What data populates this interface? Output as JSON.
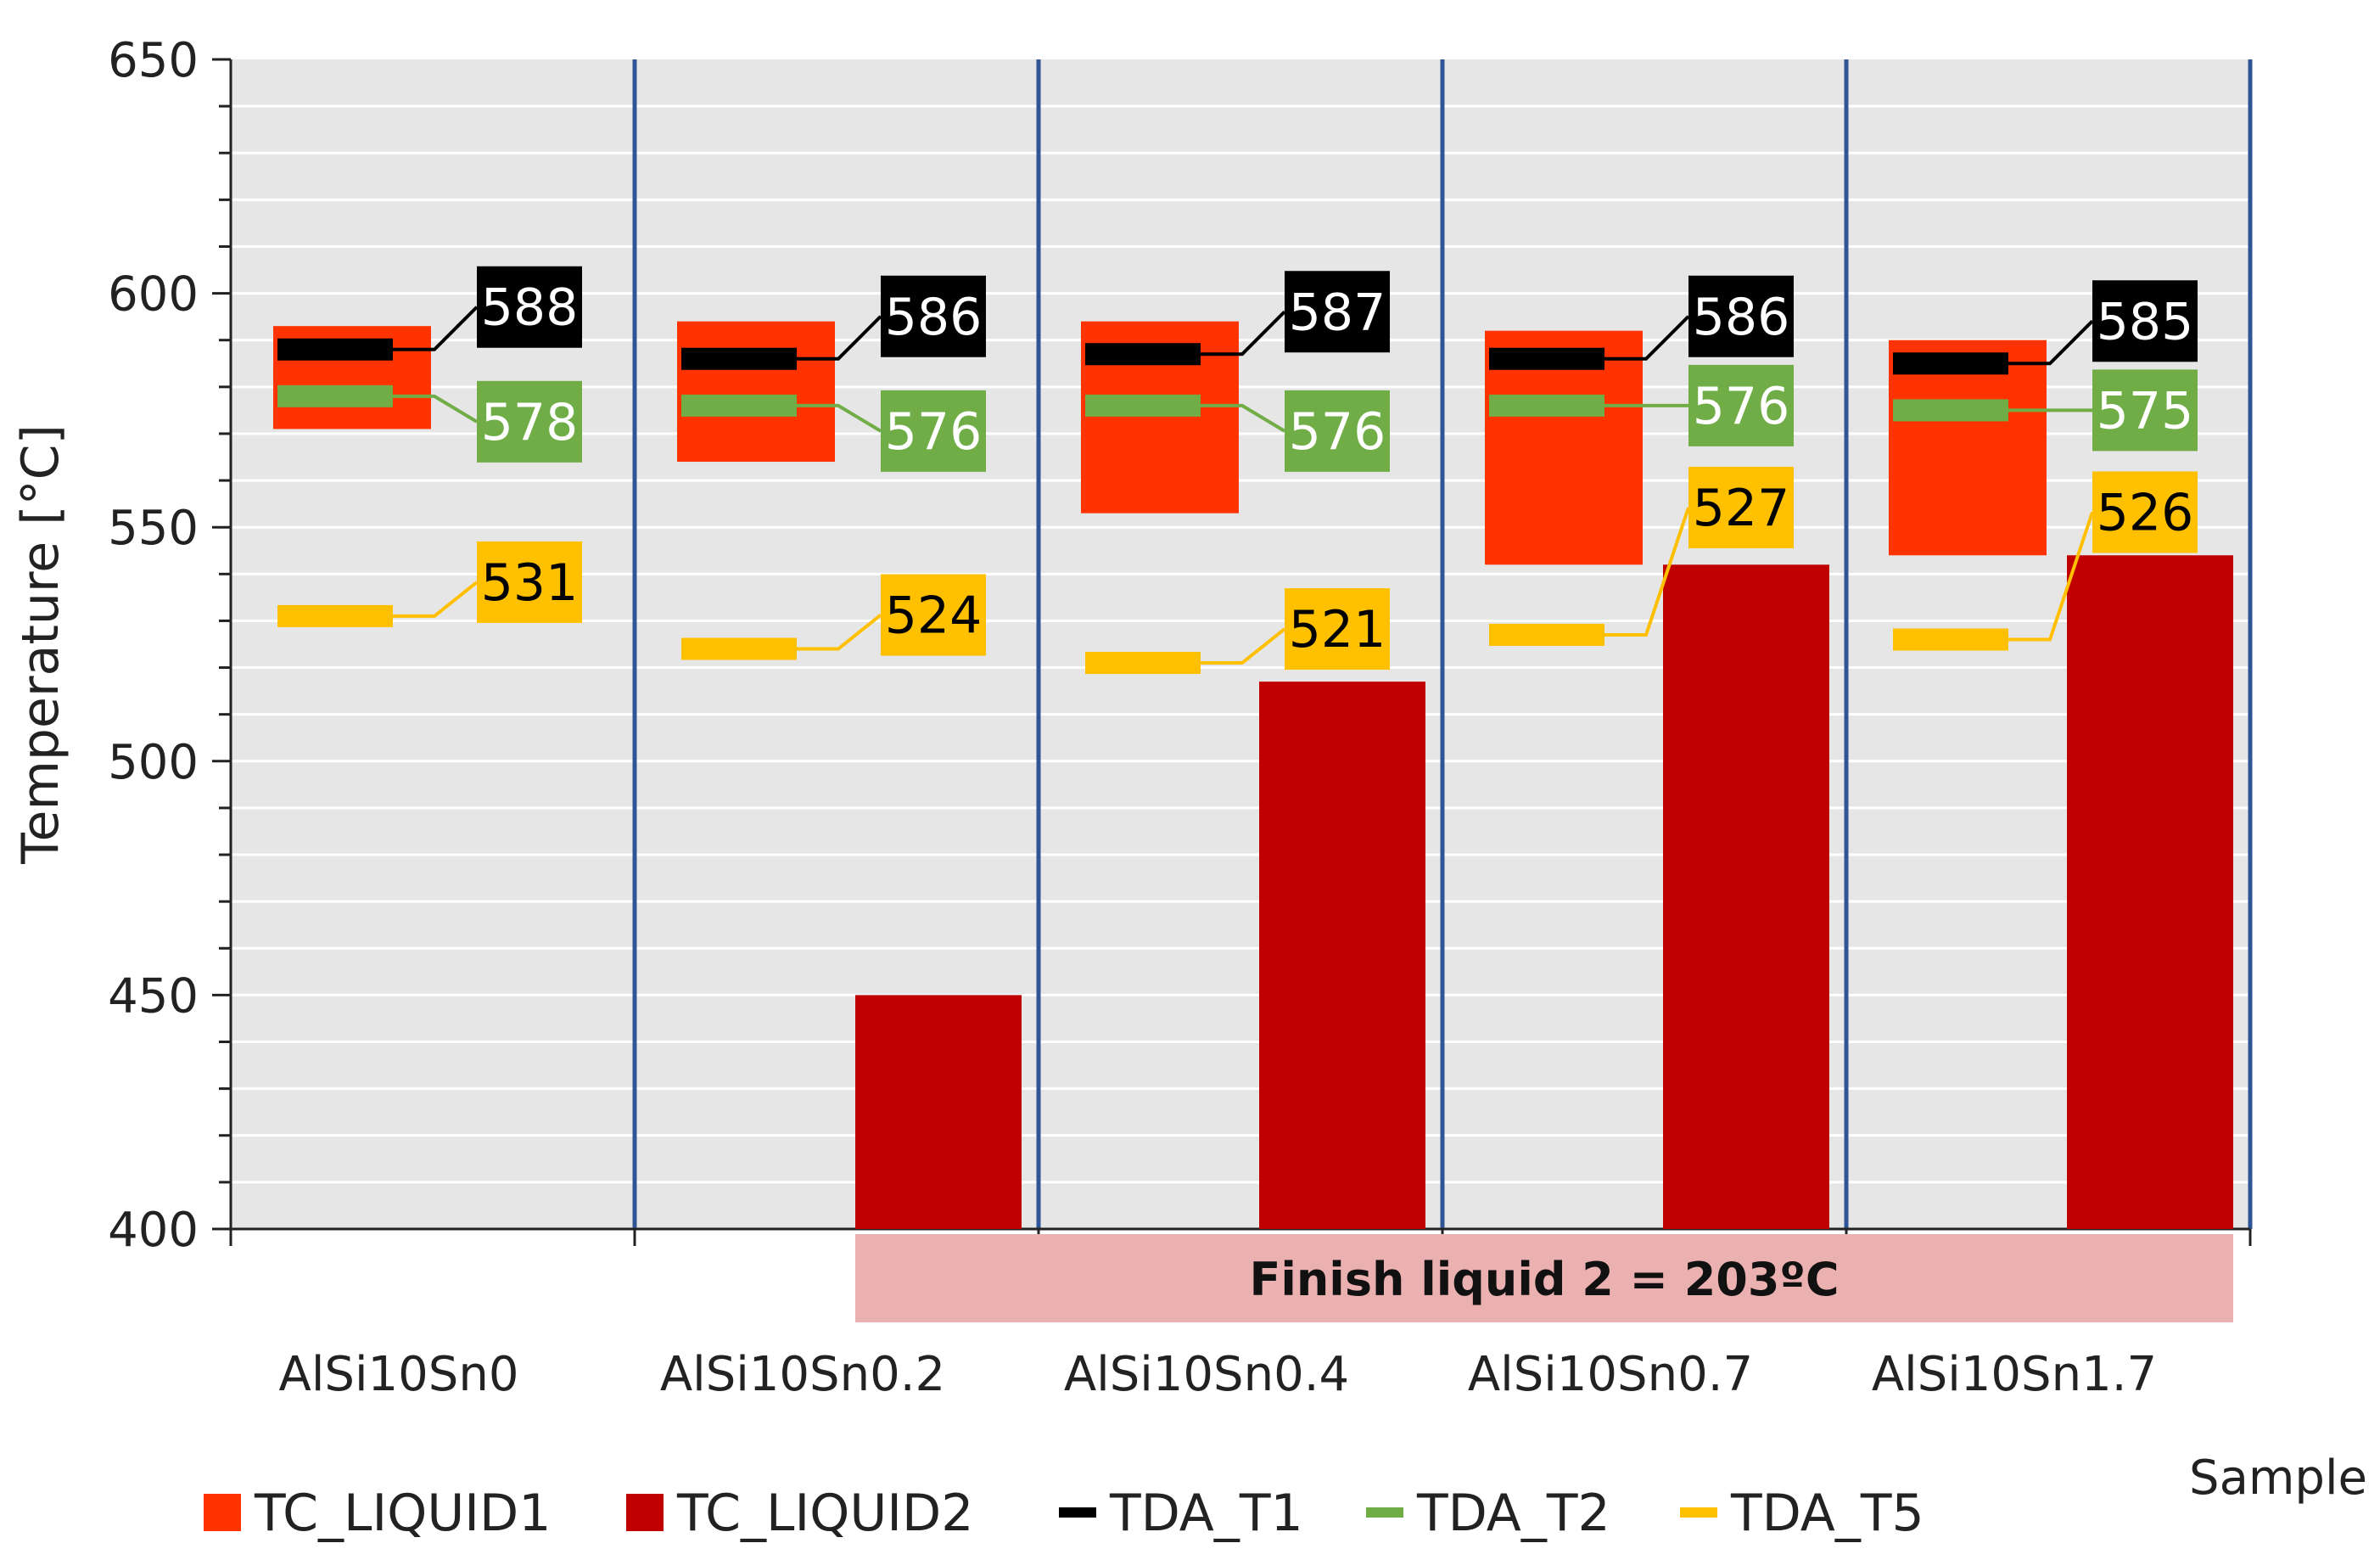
{
  "chart_data": {
    "type": "bar",
    "title": "",
    "xlabel": "Sample",
    "ylabel": "Temperature [°C]",
    "ylim": [
      400,
      650
    ],
    "yticks": [
      400,
      450,
      500,
      550,
      600,
      650
    ],
    "grid": true,
    "categories": [
      "AlSi10Sn0",
      "AlSi10Sn0.2",
      "AlSi10Sn0.4",
      "AlSi10Sn0.7",
      "AlSi10Sn1.7"
    ],
    "series": [
      {
        "name": "TC_LIQUID1",
        "kind": "floating-bar",
        "color": "#ff3300",
        "low": [
          571,
          564,
          553,
          542,
          544
        ],
        "high": [
          593,
          594,
          594,
          592,
          590
        ]
      },
      {
        "name": "TC_LIQUID2",
        "kind": "bar",
        "color": "#c00000",
        "values": [
          null,
          450,
          517,
          542,
          544
        ]
      },
      {
        "name": "TDA_T1",
        "kind": "marker",
        "color": "#000000",
        "label_color": "#ffffff",
        "values": [
          588,
          586,
          587,
          586,
          585
        ]
      },
      {
        "name": "TDA_T2",
        "kind": "marker",
        "color": "#70ad47",
        "label_color": "#ffffff",
        "values": [
          578,
          576,
          576,
          576,
          575
        ]
      },
      {
        "name": "TDA_T5",
        "kind": "marker",
        "color": "#ffc000",
        "label_color": "#000000",
        "values": [
          531,
          524,
          521,
          527,
          526
        ]
      }
    ],
    "annotation": {
      "text": "Finish liquid 2 = 203ºC",
      "color": "#ebb0b0"
    },
    "legend": {
      "position": "bottom"
    },
    "colors": {
      "plot_bg": "#e6e6e6",
      "gridline": "#ffffff",
      "separator": "#2f5597",
      "axis": "#222222"
    }
  }
}
